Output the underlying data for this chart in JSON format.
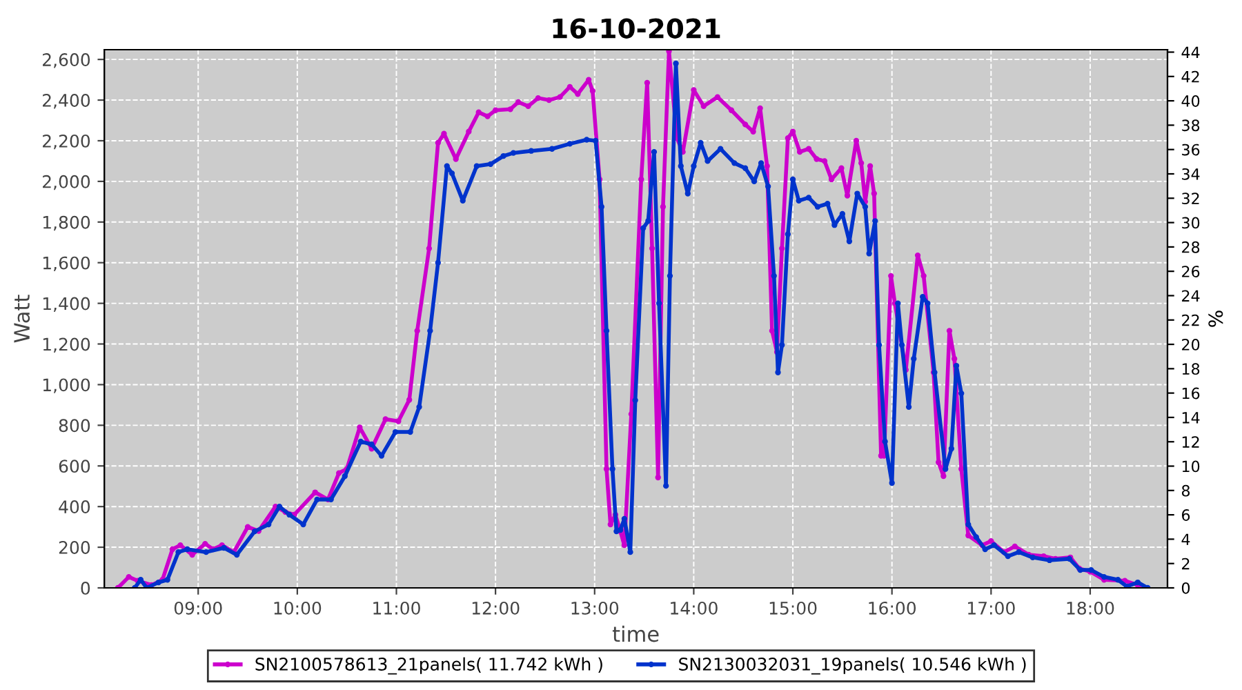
{
  "chart_data": {
    "type": "line",
    "title": "16-10-2021",
    "xlabel": "time",
    "ylabel": "Watt",
    "y2label": "%",
    "xlim": [
      8.053,
      18.78
    ],
    "xticks": [
      {
        "value": 9,
        "label": "09:00"
      },
      {
        "value": 10,
        "label": "10:00"
      },
      {
        "value": 11,
        "label": "11:00"
      },
      {
        "value": 12,
        "label": "12:00"
      },
      {
        "value": 13,
        "label": "13:00"
      },
      {
        "value": 14,
        "label": "14:00"
      },
      {
        "value": 15,
        "label": "15:00"
      },
      {
        "value": 16,
        "label": "16:00"
      },
      {
        "value": 17,
        "label": "17:00"
      },
      {
        "value": 18,
        "label": "18:00"
      }
    ],
    "ylim": [
      0,
      2648
    ],
    "yticks": [
      0,
      200,
      400,
      600,
      800,
      {
        "value": 1000,
        "label": "1,000"
      },
      {
        "value": 1200,
        "label": "1,200"
      },
      {
        "value": 1400,
        "label": "1,400"
      },
      {
        "value": 1600,
        "label": "1,600"
      },
      {
        "value": 1800,
        "label": "1,800"
      },
      {
        "value": 2000,
        "label": "2,000"
      },
      {
        "value": 2200,
        "label": "2,200"
      },
      {
        "value": 2400,
        "label": "2,400"
      },
      {
        "value": 2600,
        "label": "2,600"
      }
    ],
    "y2lim": [
      0,
      44.2
    ],
    "y2ticks": [
      0,
      2,
      4,
      6,
      8,
      10,
      12,
      14,
      16,
      18,
      20,
      22,
      24,
      26,
      28,
      30,
      32,
      34,
      36,
      38,
      40,
      42,
      44
    ],
    "grid": true,
    "legend": "bottom",
    "marker": "circle",
    "line_style": "solid",
    "series": [
      {
        "name": "SN2100578613_21panels( 11.742 kWh )",
        "color": "#cc00cc",
        "x": [
          8.19,
          8.3,
          8.39,
          8.53,
          8.64,
          8.74,
          8.82,
          8.94,
          9.07,
          9.15,
          9.24,
          9.36,
          9.5,
          9.61,
          9.78,
          9.88,
          9.97,
          10.18,
          10.31,
          10.42,
          10.5,
          10.63,
          10.75,
          10.89,
          11.02,
          11.13,
          11.21,
          11.33,
          11.42,
          11.48,
          11.6,
          11.73,
          11.83,
          11.92,
          12.0,
          12.15,
          12.23,
          12.33,
          12.43,
          12.54,
          12.65,
          12.75,
          12.83,
          12.94,
          12.98,
          13.05,
          13.12,
          13.16,
          13.21,
          13.26,
          13.3,
          13.37,
          13.47,
          13.53,
          13.58,
          13.64,
          13.69,
          13.75,
          13.83,
          13.89,
          14.0,
          14.1,
          14.24,
          14.38,
          14.52,
          14.6,
          14.67,
          14.74,
          14.79,
          14.84,
          14.89,
          14.95,
          15.0,
          15.07,
          15.16,
          15.24,
          15.32,
          15.39,
          15.49,
          15.55,
          15.64,
          15.69,
          15.73,
          15.78,
          15.82,
          15.89,
          15.92,
          15.99,
          16.03,
          16.14,
          16.26,
          16.32,
          16.42,
          16.47,
          16.52,
          16.58,
          16.63,
          16.7,
          16.77,
          16.91,
          17.0,
          17.13,
          17.24,
          17.38,
          17.53,
          17.65,
          17.8,
          17.89,
          18.0,
          18.14,
          18.35,
          18.48,
          18.55
        ],
        "values": [
          0,
          54,
          35,
          14,
          40,
          190,
          210,
          163,
          217,
          190,
          210,
          176,
          300,
          280,
          400,
          373,
          360,
          470,
          435,
          565,
          585,
          790,
          685,
          830,
          820,
          925,
          1265,
          1670,
          2190,
          2235,
          2110,
          2245,
          2340,
          2320,
          2350,
          2355,
          2390,
          2370,
          2410,
          2400,
          2415,
          2465,
          2430,
          2500,
          2445,
          2010,
          585,
          312,
          360,
          278,
          210,
          855,
          2010,
          2485,
          1670,
          543,
          1875,
          2640,
          2213,
          2145,
          2450,
          2370,
          2415,
          2350,
          2280,
          2245,
          2360,
          2075,
          1265,
          1160,
          1670,
          2213,
          2245,
          2145,
          2160,
          2110,
          2100,
          2010,
          2065,
          1930,
          2200,
          2090,
          1900,
          2075,
          1940,
          650,
          650,
          1535,
          1400,
          1073,
          1636,
          1535,
          1060,
          618,
          550,
          1265,
          1127,
          585,
          258,
          210,
          230,
          176,
          204,
          163,
          156,
          143,
          150,
          95,
          80,
          40,
          35,
          14,
          0
        ]
      },
      {
        "name": "SN2130032031_19panels( 10.546 kWh )",
        "color": "#0033cc",
        "x": [
          8.36,
          8.42,
          8.48,
          8.6,
          8.69,
          8.8,
          8.89,
          9.08,
          9.26,
          9.39,
          9.57,
          9.71,
          9.82,
          9.92,
          10.06,
          10.2,
          10.34,
          10.48,
          10.64,
          10.75,
          10.85,
          10.99,
          11.14,
          11.23,
          11.34,
          11.42,
          11.51,
          11.56,
          11.67,
          11.81,
          11.95,
          12.08,
          12.18,
          12.36,
          12.57,
          12.75,
          12.92,
          13.01,
          13.07,
          13.12,
          13.18,
          13.22,
          13.26,
          13.3,
          13.36,
          13.41,
          13.49,
          13.54,
          13.6,
          13.65,
          13.72,
          13.76,
          13.82,
          13.87,
          13.94,
          14.0,
          14.07,
          14.14,
          14.27,
          14.41,
          14.52,
          14.61,
          14.68,
          14.75,
          14.81,
          14.85,
          14.89,
          14.95,
          15.0,
          15.06,
          15.16,
          15.25,
          15.35,
          15.42,
          15.5,
          15.57,
          15.65,
          15.73,
          15.77,
          15.83,
          15.87,
          15.93,
          16.0,
          16.06,
          16.1,
          16.17,
          16.22,
          16.31,
          16.36,
          16.43,
          16.54,
          16.6,
          16.65,
          16.7,
          16.77,
          16.85,
          16.94,
          17.03,
          17.17,
          17.28,
          17.42,
          17.59,
          17.79,
          17.9,
          18.01,
          18.14,
          18.28,
          18.37,
          18.48,
          18.58
        ],
        "values": [
          0,
          40,
          0,
          27,
          40,
          176,
          190,
          176,
          197,
          163,
          278,
          312,
          400,
          360,
          312,
          435,
          435,
          550,
          720,
          706,
          650,
          767,
          767,
          890,
          1265,
          1600,
          2075,
          2040,
          1905,
          2075,
          2085,
          2125,
          2140,
          2150,
          2160,
          2185,
          2205,
          2200,
          1875,
          1265,
          585,
          278,
          285,
          340,
          176,
          923,
          1770,
          1805,
          2145,
          1400,
          502,
          1535,
          2580,
          2075,
          1940,
          2075,
          2190,
          2100,
          2160,
          2090,
          2065,
          2000,
          2090,
          1975,
          1535,
          1060,
          1195,
          1740,
          2010,
          1905,
          1920,
          1875,
          1890,
          1785,
          1840,
          1705,
          1940,
          1875,
          1645,
          1805,
          1195,
          720,
          516,
          1400,
          1195,
          890,
          1127,
          1432,
          1400,
          1060,
          585,
          685,
          1093,
          957,
          312,
          250,
          190,
          210,
          156,
          176,
          150,
          136,
          143,
          88,
          88,
          54,
          40,
          7,
          27,
          0
        ]
      }
    ]
  }
}
